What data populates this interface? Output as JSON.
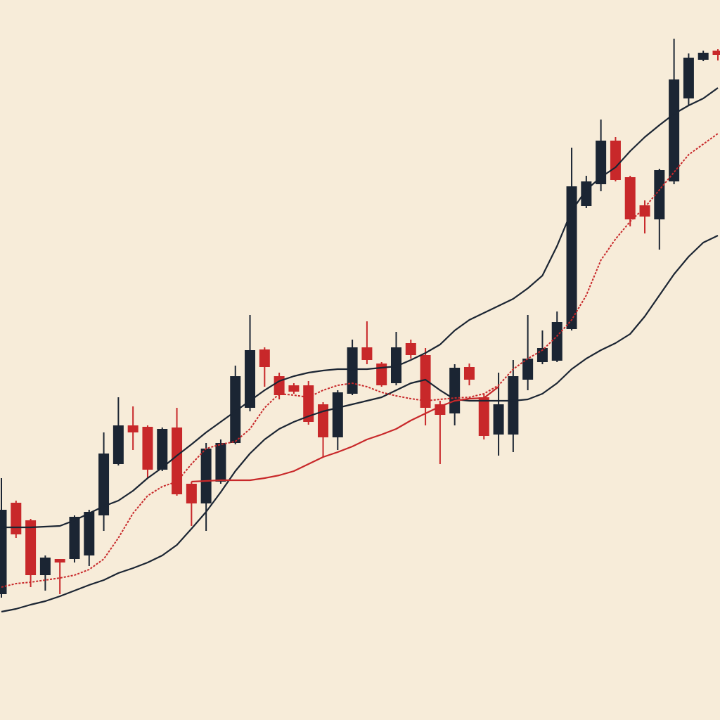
{
  "chart_data": {
    "type": "candlestick",
    "categories": [
      null,
      null,
      null,
      null,
      null,
      null,
      null,
      null,
      null,
      null,
      null,
      null,
      null,
      null,
      null,
      null,
      null,
      null,
      null,
      null,
      null,
      null,
      null,
      null,
      null,
      null,
      null,
      null,
      null,
      null,
      null,
      null,
      null,
      null,
      null,
      null,
      null,
      null,
      null,
      null,
      null,
      null,
      null,
      null,
      null,
      null,
      null,
      null,
      null,
      null
    ],
    "open": [
      179,
      309,
      284,
      206,
      229,
      229,
      234,
      291,
      364,
      419,
      417,
      356,
      416,
      336,
      308,
      339,
      394,
      444,
      527,
      489,
      476,
      476,
      449,
      402,
      464,
      530,
      507,
      479,
      536,
      519,
      449,
      436,
      502,
      459,
      406,
      406,
      484,
      509,
      511,
      556,
      731,
      762,
      824,
      772,
      732,
      712,
      766,
      884,
      939,
      952
    ],
    "close": [
      299,
      264,
      206,
      231,
      224,
      289,
      296,
      379,
      419,
      409,
      356,
      414,
      321,
      308,
      386,
      394,
      489,
      526,
      502,
      462,
      467,
      424,
      402,
      466,
      530,
      512,
      476,
      530,
      519,
      444,
      434,
      501,
      484,
      404,
      449,
      489,
      514,
      529,
      566,
      759,
      766,
      824,
      768,
      712,
      716,
      782,
      911,
      942,
      949,
      946
    ],
    "high": [
      344,
      312,
      286,
      234,
      229,
      291,
      299,
      409,
      459,
      446,
      419,
      416,
      444,
      339,
      394,
      399,
      504,
      576,
      530,
      494,
      479,
      482,
      452,
      469,
      541,
      567,
      509,
      552,
      541,
      529,
      454,
      506,
      507,
      464,
      494,
      512,
      576,
      554,
      581,
      814,
      774,
      854,
      829,
      774,
      739,
      784,
      969,
      948,
      952,
      954
    ],
    "low": [
      174,
      259,
      189,
      184,
      179,
      224,
      219,
      269,
      362,
      384,
      344,
      354,
      319,
      276,
      269,
      336,
      392,
      439,
      474,
      456,
      464,
      420,
      374,
      384,
      462,
      506,
      474,
      476,
      514,
      419,
      364,
      419,
      476,
      399,
      376,
      381,
      469,
      506,
      509,
      554,
      728,
      752,
      766,
      702,
      692,
      669,
      762,
      874,
      937,
      938
    ],
    "up_color": "#1b2533",
    "down_color": "#c8282a",
    "ylim": [
      0,
      1024
    ],
    "lines": [
      {
        "color": "#1b2533",
        "dashed": false,
        "values": [
          274,
          274,
          274,
          275,
          276,
          284,
          294,
          304,
          312,
          326,
          344,
          359,
          376,
          392,
          409,
          424,
          439,
          454,
          469,
          482,
          489,
          494,
          497,
          499,
          499,
          499,
          501,
          503,
          512,
          522,
          534,
          554,
          569,
          579,
          589,
          599,
          614,
          632,
          674,
          724,
          754,
          772,
          786,
          809,
          829,
          846,
          862,
          874,
          884,
          899
        ]
      },
      {
        "color": "#1b2533",
        "dashed": false,
        "values": [
          154,
          158,
          164,
          169,
          176,
          184,
          192,
          199,
          209,
          216,
          224,
          234,
          249,
          272,
          296,
          324,
          354,
          379,
          399,
          414,
          424,
          432,
          439,
          444,
          449,
          454,
          459,
          469,
          479,
          484,
          469,
          456,
          454,
          454,
          454,
          454,
          456,
          464,
          479,
          499,
          514,
          526,
          536,
          549,
          574,
          604,
          634,
          659,
          679,
          689
        ]
      },
      {
        "color": "#c8282a",
        "dashed": false,
        "values": [
          null,
          null,
          null,
          null,
          null,
          null,
          null,
          null,
          null,
          null,
          null,
          null,
          null,
          339,
          340,
          341,
          341,
          341,
          344,
          348,
          354,
          364,
          374,
          381,
          389,
          399,
          406,
          414,
          426,
          436,
          446,
          454,
          457,
          458,
          474,
          null,
          null,
          null,
          null,
          null,
          null,
          null,
          null,
          null,
          null,
          null,
          null,
          null,
          null,
          null
        ]
      },
      {
        "color": "#c8282a",
        "dashed": true,
        "values": [
          189,
          194,
          196,
          199,
          202,
          206,
          214,
          229,
          259,
          294,
          319,
          332,
          339,
          364,
          386,
          392,
          396,
          414,
          444,
          464,
          462,
          459,
          469,
          476,
          479,
          474,
          466,
          461,
          457,
          454,
          456,
          458,
          459,
          464,
          476,
          499,
          514,
          526,
          546,
          569,
          604,
          654,
          684,
          709,
          729,
          754,
          779,
          804,
          819,
          834
        ]
      }
    ]
  }
}
